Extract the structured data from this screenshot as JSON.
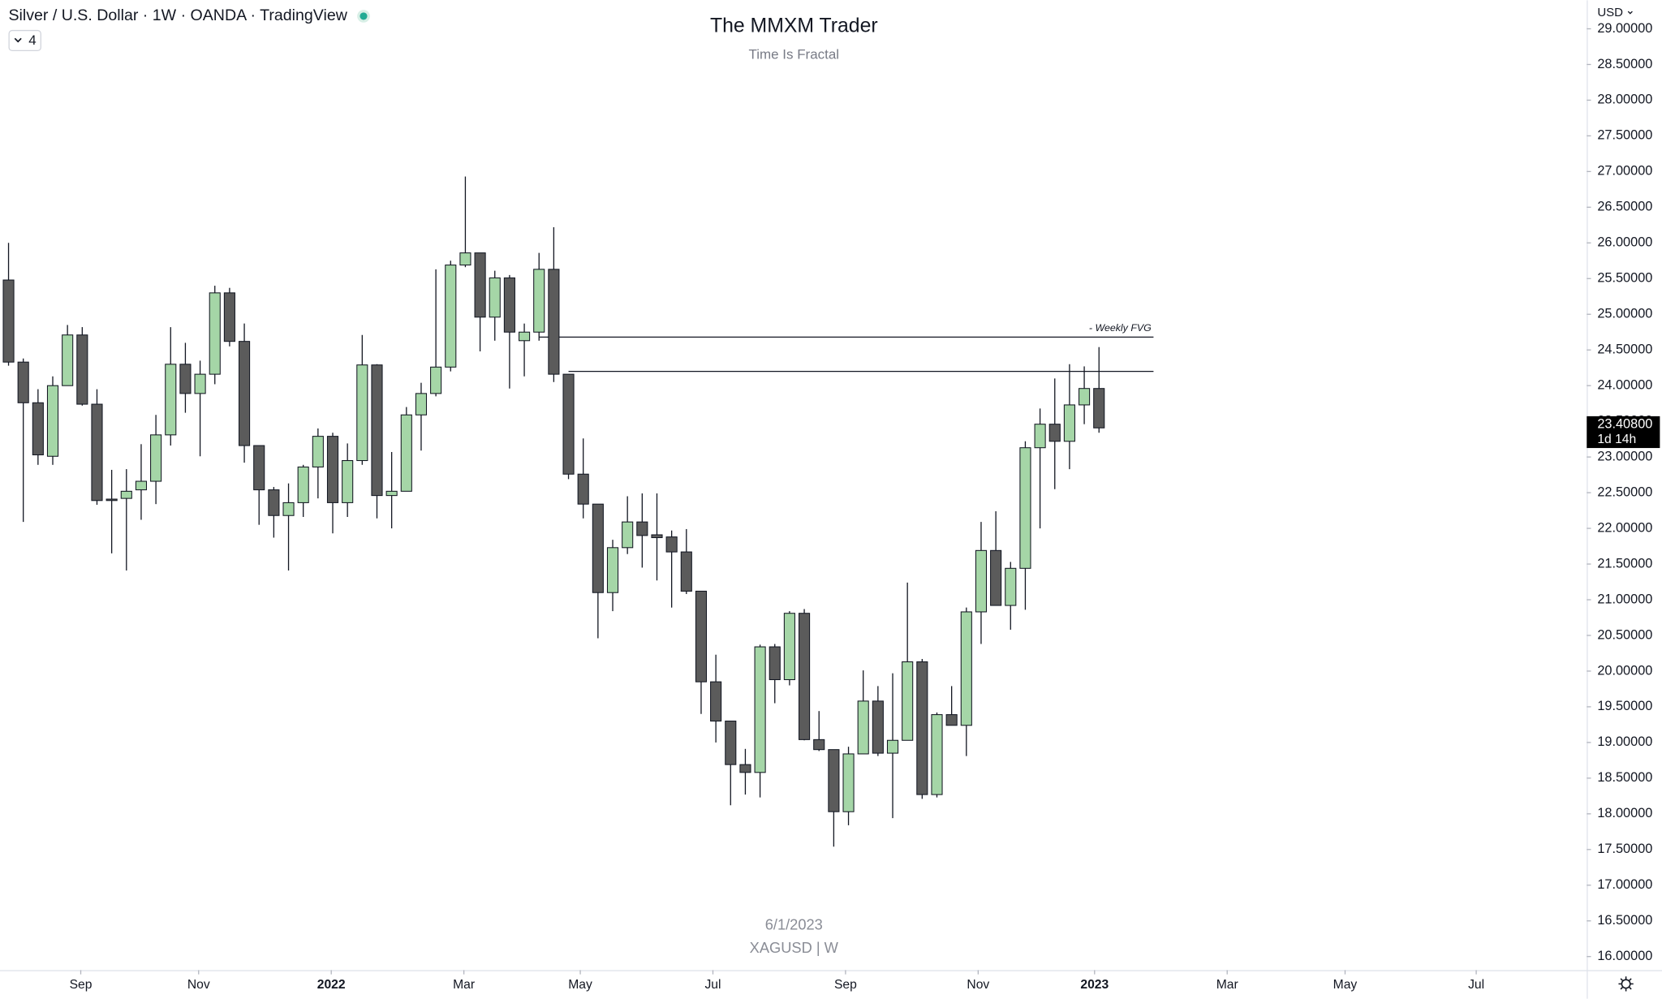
{
  "chart_data": {
    "type": "candlestick",
    "header": "Silver / U.S. Dollar · 1W · OANDA · TradingView",
    "indicator_count": "4",
    "currency": "USD",
    "title": "The MMXM Trader",
    "subtitle": "Time Is Fractal",
    "watermark": [
      "6/1/2023",
      "XAGUSD | W"
    ],
    "up_color": "#a5d6a7",
    "down_color": "#5b5b5b",
    "open": [
      25.48,
      24.33,
      23.76,
      23.01,
      24.0,
      24.71,
      23.74,
      22.41,
      22.42,
      22.54,
      22.66,
      23.31,
      24.3,
      23.89,
      24.16,
      25.3,
      24.62,
      23.16,
      22.54,
      22.18,
      22.36,
      22.86,
      23.29,
      22.36,
      22.95,
      24.29,
      22.46,
      22.52,
      23.59,
      23.89,
      24.26,
      25.69,
      25.86,
      24.96,
      25.51,
      24.63,
      24.75,
      25.63,
      24.16,
      22.76,
      22.34,
      21.1,
      21.73,
      22.09,
      21.91,
      21.88,
      21.67,
      21.12,
      19.85,
      19.3,
      18.69,
      18.58,
      20.34,
      19.88,
      20.81,
      19.04,
      18.9,
      18.03,
      18.84,
      19.58,
      18.85,
      19.03,
      20.13,
      18.27,
      19.39,
      19.24,
      20.83,
      21.69,
      20.92,
      21.44,
      23.13,
      23.46,
      23.22,
      23.73,
      23.96
    ],
    "high": [
      26.0,
      24.38,
      23.95,
      24.13,
      24.85,
      24.82,
      23.95,
      22.82,
      22.83,
      23.18,
      23.59,
      24.82,
      24.6,
      24.35,
      25.4,
      25.37,
      24.87,
      23.16,
      22.58,
      22.63,
      22.89,
      23.4,
      23.34,
      23.19,
      24.71,
      24.3,
      23.07,
      23.7,
      24.04,
      25.63,
      25.75,
      26.93,
      25.86,
      25.61,
      25.55,
      24.87,
      25.86,
      26.22,
      24.16,
      23.26,
      22.34,
      21.84,
      22.45,
      22.49,
      22.49,
      21.97,
      21.99,
      21.12,
      20.23,
      19.3,
      18.91,
      20.37,
      20.38,
      20.84,
      20.87,
      19.44,
      18.9,
      18.94,
      20.01,
      19.79,
      19.97,
      21.24,
      20.17,
      19.42,
      19.79,
      20.89,
      22.09,
      22.24,
      21.53,
      23.22,
      23.68,
      24.1,
      24.3,
      24.27,
      24.54
    ],
    "low": [
      24.28,
      22.09,
      22.89,
      22.89,
      24.0,
      23.72,
      22.33,
      21.65,
      21.41,
      22.12,
      22.34,
      23.16,
      23.62,
      23.01,
      24.02,
      24.55,
      22.92,
      22.05,
      21.87,
      21.41,
      22.16,
      22.42,
      21.93,
      22.16,
      22.89,
      22.14,
      22.0,
      22.52,
      23.09,
      23.85,
      24.2,
      25.66,
      24.48,
      24.63,
      23.96,
      24.13,
      24.63,
      24.05,
      22.69,
      22.14,
      20.46,
      20.84,
      21.64,
      21.45,
      21.27,
      20.89,
      21.08,
      19.4,
      19.0,
      18.12,
      18.27,
      18.23,
      19.55,
      19.8,
      19.03,
      18.88,
      17.54,
      17.84,
      18.84,
      18.81,
      17.94,
      19.03,
      18.21,
      18.23,
      19.24,
      18.81,
      20.38,
      20.92,
      20.58,
      20.86,
      22.0,
      22.55,
      22.83,
      23.46,
      23.34
    ],
    "close": [
      24.33,
      23.76,
      23.03,
      24.0,
      24.71,
      23.74,
      22.39,
      22.39,
      22.52,
      22.66,
      23.31,
      24.3,
      23.89,
      24.16,
      25.3,
      24.62,
      23.16,
      22.54,
      22.18,
      22.36,
      22.86,
      23.29,
      22.36,
      22.95,
      24.29,
      22.46,
      22.52,
      23.59,
      23.89,
      24.26,
      25.69,
      25.86,
      24.96,
      25.51,
      24.75,
      24.75,
      25.63,
      24.16,
      22.76,
      22.34,
      21.1,
      21.73,
      22.09,
      21.9,
      21.87,
      21.67,
      21.12,
      19.85,
      19.3,
      18.69,
      18.58,
      20.34,
      19.88,
      20.81,
      19.04,
      18.9,
      18.03,
      18.84,
      19.58,
      18.85,
      19.03,
      20.13,
      18.27,
      19.39,
      19.24,
      20.83,
      21.69,
      20.92,
      21.44,
      23.13,
      23.46,
      23.22,
      23.73,
      23.96,
      23.408
    ],
    "last_price": {
      "value": 23.408,
      "label": "23.40800"
    },
    "countdown": "1d 14h",
    "fvg": {
      "label": "- Weekly FVG",
      "lines": [
        {
          "price": 24.68,
          "from": 36,
          "to": 77.7
        },
        {
          "price": 24.2,
          "from": 38,
          "to": 77.7
        }
      ]
    },
    "xlim": [
      -0.58,
      107.1
    ],
    "xticks": [
      {
        "value": 4.9,
        "label": "Sep"
      },
      {
        "value": 12.9,
        "label": "Nov"
      },
      {
        "value": 21.9,
        "label": "2022"
      },
      {
        "value": 30.9,
        "label": "Mar"
      },
      {
        "value": 38.8,
        "label": "May"
      },
      {
        "value": 47.8,
        "label": "Jul"
      },
      {
        "value": 56.8,
        "label": "Sep"
      },
      {
        "value": 65.8,
        "label": "Nov"
      },
      {
        "value": 73.7,
        "label": "2023"
      },
      {
        "value": 82.7,
        "label": "Mar"
      },
      {
        "value": 90.7,
        "label": "May"
      },
      {
        "value": 99.6,
        "label": "Jul"
      }
    ],
    "ylim": [
      15.81,
      29.4
    ],
    "yticks": [
      {
        "value": 16,
        "label": "16.00000"
      },
      {
        "value": 16.5,
        "label": "16.50000"
      },
      {
        "value": 17,
        "label": "17.00000"
      },
      {
        "value": 17.5,
        "label": "17.50000"
      },
      {
        "value": 18,
        "label": "18.00000"
      },
      {
        "value": 18.5,
        "label": "18.50000"
      },
      {
        "value": 19,
        "label": "19.00000"
      },
      {
        "value": 19.5,
        "label": "19.50000"
      },
      {
        "value": 20,
        "label": "20.00000"
      },
      {
        "value": 20.5,
        "label": "20.50000"
      },
      {
        "value": 21,
        "label": "21.00000"
      },
      {
        "value": 21.5,
        "label": "21.50000"
      },
      {
        "value": 22,
        "label": "22.00000"
      },
      {
        "value": 22.5,
        "label": "22.50000"
      },
      {
        "value": 23,
        "label": "23.00000"
      },
      {
        "value": 23.5,
        "label": "23.50000"
      },
      {
        "value": 24,
        "label": "24.00000"
      },
      {
        "value": 24.5,
        "label": "24.50000"
      },
      {
        "value": 25,
        "label": "25.00000"
      },
      {
        "value": 25.5,
        "label": "25.50000"
      },
      {
        "value": 26,
        "label": "26.00000"
      },
      {
        "value": 26.5,
        "label": "26.50000"
      },
      {
        "value": 27,
        "label": "27.00000"
      },
      {
        "value": 27.5,
        "label": "27.50000"
      },
      {
        "value": 28,
        "label": "28.00000"
      },
      {
        "value": 28.5,
        "label": "28.50000"
      },
      {
        "value": 29,
        "label": "29.00000"
      }
    ]
  }
}
